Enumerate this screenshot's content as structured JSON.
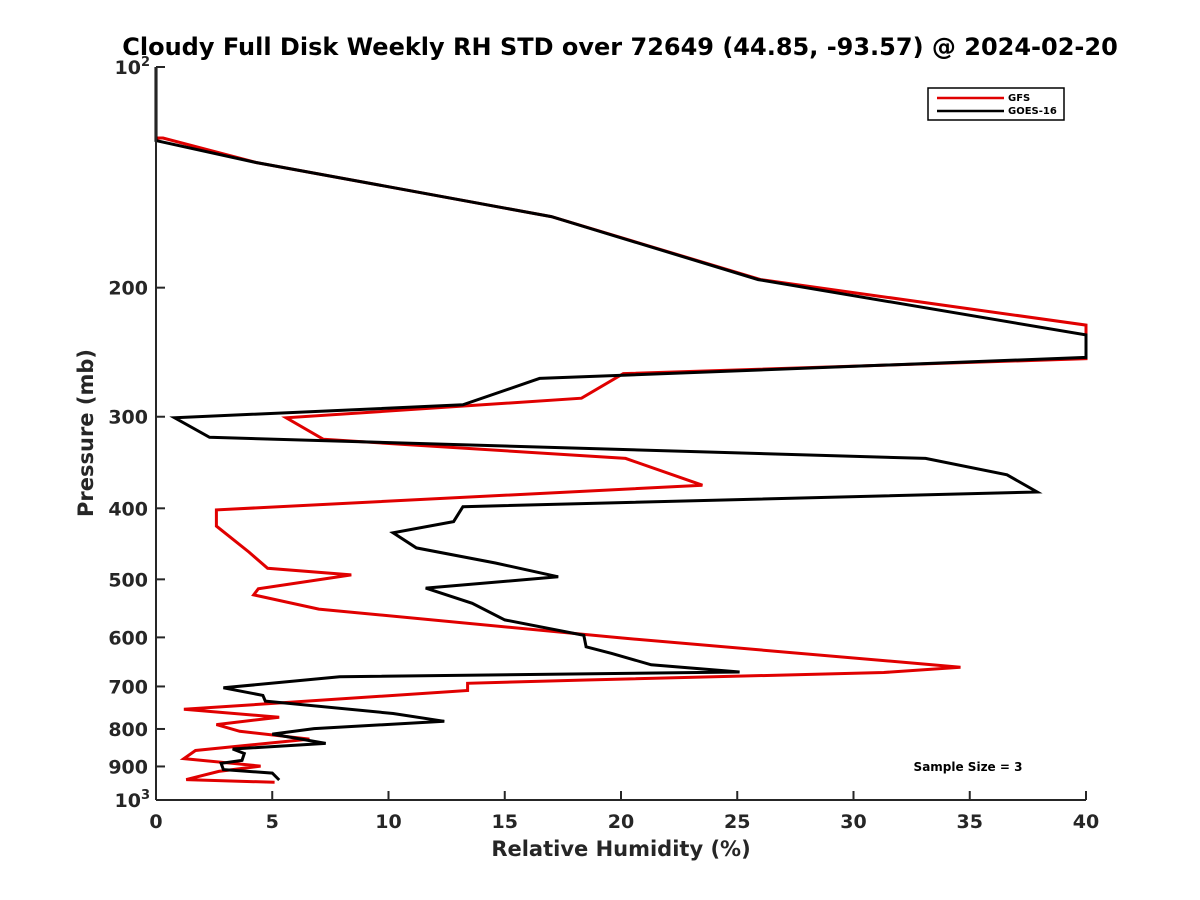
{
  "chart_data": {
    "type": "line",
    "title": "Cloudy Full Disk Weekly RH STD over 72649 (44.85, -93.57) @ 2024-02-20",
    "xlabel": "Relative Humidity (%)",
    "ylabel": "Pressure (mb)",
    "xlim": [
      0,
      40
    ],
    "ylim": [
      100,
      1000
    ],
    "y_scale": "log",
    "y_reversed": true,
    "grid": false,
    "legend_position": "top-right",
    "x_ticks": [
      "0",
      "5",
      "10",
      "15",
      "20",
      "25",
      "30",
      "35",
      "40"
    ],
    "y_ticks": [
      {
        "value": 100,
        "base": "10",
        "exp": "2"
      },
      {
        "value": 200,
        "label": "200"
      },
      {
        "value": 300,
        "label": "300"
      },
      {
        "value": 400,
        "label": "400"
      },
      {
        "value": 500,
        "label": "500"
      },
      {
        "value": 600,
        "label": "600"
      },
      {
        "value": 700,
        "label": "700"
      },
      {
        "value": 800,
        "label": "800"
      },
      {
        "value": 900,
        "label": "900"
      },
      {
        "value": 1000,
        "base": "10",
        "exp": "3"
      }
    ],
    "annotation": "Sample Size = 3",
    "series": [
      {
        "name": "GFS",
        "color": "#e00000",
        "points": [
          [
            0.0,
            100
          ],
          [
            0.0,
            125
          ],
          [
            0.3,
            125
          ],
          [
            4.3,
            135
          ],
          [
            17.0,
            160
          ],
          [
            26.0,
            195
          ],
          [
            40.0,
            225
          ],
          [
            40.0,
            250
          ],
          [
            20.1,
            262
          ],
          [
            18.3,
            283
          ],
          [
            5.6,
            301
          ],
          [
            7.2,
            322
          ],
          [
            20.2,
            342
          ],
          [
            23.5,
            372
          ],
          [
            2.6,
            402
          ],
          [
            2.6,
            423
          ],
          [
            4.0,
            459
          ],
          [
            4.8,
            483
          ],
          [
            8.4,
            493
          ],
          [
            4.4,
            515
          ],
          [
            4.2,
            525
          ],
          [
            7.0,
            549
          ],
          [
            20.0,
            601
          ],
          [
            34.6,
            659
          ],
          [
            31.3,
            670
          ],
          [
            18.5,
            686
          ],
          [
            13.4,
            693
          ],
          [
            13.4,
            709
          ],
          [
            1.2,
            752
          ],
          [
            5.3,
            771
          ],
          [
            2.6,
            789
          ],
          [
            3.6,
            806
          ],
          [
            6.6,
            826
          ],
          [
            1.7,
            856
          ],
          [
            1.2,
            878
          ],
          [
            4.5,
            899
          ],
          [
            2.7,
            914
          ],
          [
            1.3,
            938
          ],
          [
            5.1,
            946
          ]
        ]
      },
      {
        "name": "GOES-16",
        "color": "#000000",
        "points": [
          [
            0.0,
            100
          ],
          [
            0.0,
            126
          ],
          [
            4.3,
            135
          ],
          [
            17.0,
            160
          ],
          [
            25.9,
            195
          ],
          [
            40.0,
            232
          ],
          [
            40.0,
            249
          ],
          [
            16.5,
            266
          ],
          [
            13.2,
            289
          ],
          [
            0.8,
            301
          ],
          [
            2.3,
            320
          ],
          [
            33.1,
            342
          ],
          [
            36.6,
            360
          ],
          [
            37.9,
            380
          ],
          [
            13.2,
            398
          ],
          [
            12.8,
            417
          ],
          [
            10.2,
            432
          ],
          [
            11.2,
            453
          ],
          [
            14.6,
            475
          ],
          [
            17.3,
            496
          ],
          [
            11.6,
            514
          ],
          [
            13.6,
            539
          ],
          [
            15.0,
            568
          ],
          [
            18.4,
            596
          ],
          [
            18.5,
            618
          ],
          [
            19.6,
            631
          ],
          [
            21.3,
            654
          ],
          [
            25.1,
            669
          ],
          [
            7.9,
            679
          ],
          [
            2.9,
            703
          ],
          [
            4.6,
            720
          ],
          [
            4.7,
            733
          ],
          [
            10.2,
            762
          ],
          [
            12.4,
            781
          ],
          [
            6.8,
            799
          ],
          [
            5.0,
            813
          ],
          [
            7.3,
            837
          ],
          [
            3.3,
            852
          ],
          [
            3.8,
            864
          ],
          [
            3.7,
            883
          ],
          [
            2.8,
            891
          ],
          [
            2.9,
            909
          ],
          [
            5.0,
            919
          ],
          [
            5.3,
            939
          ]
        ]
      }
    ]
  }
}
